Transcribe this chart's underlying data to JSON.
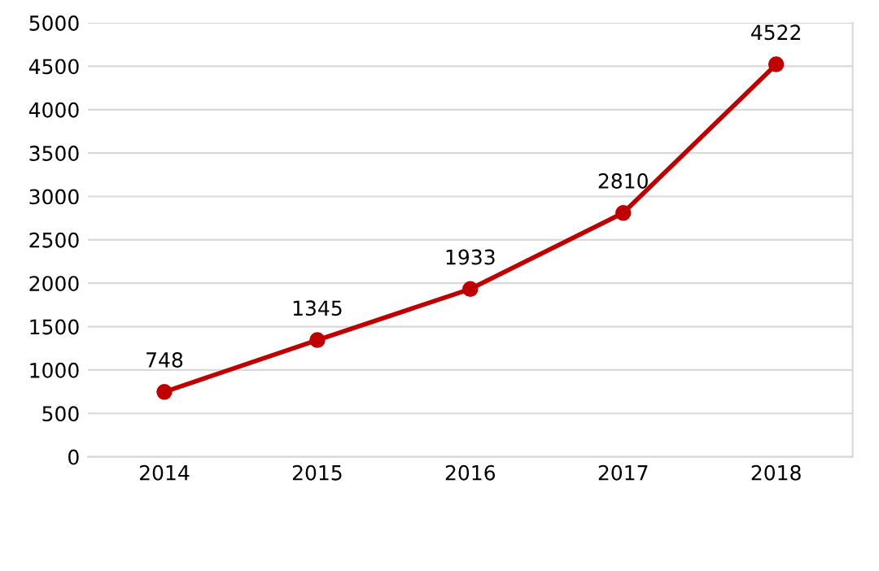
{
  "chart_data": {
    "type": "line",
    "categories": [
      "2014",
      "2015",
      "2016",
      "2017",
      "2018"
    ],
    "series": [
      {
        "color": "#c00000",
        "values": [
          748,
          1345,
          1933,
          2810,
          4522
        ]
      }
    ],
    "ylim": [
      0,
      5000
    ],
    "yticks": [
      0,
      500,
      1000,
      1500,
      2000,
      2500,
      3000,
      3500,
      4000,
      4500,
      5000
    ],
    "grid": "y",
    "marker": "circle",
    "line_style": "solid",
    "data_labels": true
  }
}
